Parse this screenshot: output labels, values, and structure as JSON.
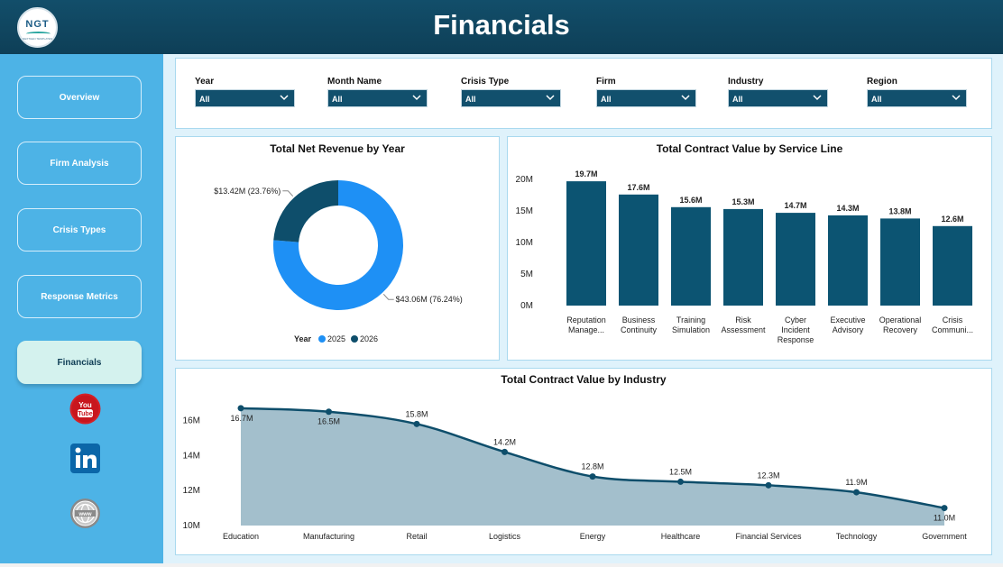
{
  "header": {
    "title": "Financials"
  },
  "logo": {
    "text": "NGT",
    "subtext": "NEXTGEN TEMPLATES"
  },
  "sidebar": {
    "items": [
      {
        "label": "Overview"
      },
      {
        "label": "Firm Analysis"
      },
      {
        "label": "Crisis Types"
      },
      {
        "label": "Response Metrics"
      },
      {
        "label": "Financials",
        "active": true
      }
    ],
    "social": [
      "youtube-icon",
      "linkedin-icon",
      "website-icon"
    ]
  },
  "filters": [
    {
      "label": "Year",
      "value": "All"
    },
    {
      "label": "Month Name",
      "value": "All"
    },
    {
      "label": "Crisis Type",
      "value": "All"
    },
    {
      "label": "Firm",
      "value": "All"
    },
    {
      "label": "Industry",
      "value": "All"
    },
    {
      "label": "Region",
      "value": "All"
    }
  ],
  "colors": {
    "header": "#0e3f57",
    "sidebar": "#4db3e6",
    "bar": "#0c5472",
    "donut_2025": "#1e90f5",
    "donut_2026": "#0e4e6b",
    "area_fill": "#a3bfcc",
    "area_line": "#0e4e6b"
  },
  "chart_data": [
    {
      "type": "pie",
      "title": "Total Net Revenue by Year",
      "legend_title": "Year",
      "legend_position": "bottom",
      "slices": [
        {
          "label": "2025",
          "value": 43.06,
          "display": "$43.06M (76.24%)"
        },
        {
          "label": "2026",
          "value": 13.42,
          "display": "$13.42M (23.76%)"
        }
      ]
    },
    {
      "type": "bar",
      "title": "Total Contract Value by Service Line",
      "categories": [
        [
          "Reputation",
          "Manage..."
        ],
        [
          "Business",
          "Continuity"
        ],
        [
          "Training",
          "Simulation"
        ],
        [
          "Risk",
          "Assessment"
        ],
        [
          "Cyber",
          "Incident",
          "Response"
        ],
        [
          "Executive",
          "Advisory"
        ],
        [
          "Operational",
          "Recovery"
        ],
        [
          "Crisis",
          "Communi..."
        ]
      ],
      "values": [
        19.7,
        17.6,
        15.6,
        15.3,
        14.7,
        14.3,
        13.8,
        12.6
      ],
      "data_labels": [
        "19.7M",
        "17.6M",
        "15.6M",
        "15.3M",
        "14.7M",
        "14.3M",
        "13.8M",
        "12.6M"
      ],
      "yticks": [
        {
          "value": 0,
          "label": "0M"
        },
        {
          "value": 5,
          "label": "5M"
        },
        {
          "value": 10,
          "label": "10M"
        },
        {
          "value": 15,
          "label": "15M"
        },
        {
          "value": 20,
          "label": "20M"
        }
      ],
      "ylim": [
        0,
        20
      ]
    },
    {
      "type": "area",
      "title": "Total Contract Value by Industry",
      "categories": [
        "Education",
        "Manufacturing",
        "Retail",
        "Logistics",
        "Energy",
        "Healthcare",
        "Financial Services",
        "Technology",
        "Government"
      ],
      "values": [
        16.7,
        16.5,
        15.8,
        14.2,
        12.8,
        12.5,
        12.3,
        11.9,
        11.0
      ],
      "data_labels": [
        "16.7M",
        "16.5M",
        "15.8M",
        "14.2M",
        "12.8M",
        "12.5M",
        "12.3M",
        "11.9M",
        "11.0M"
      ],
      "yticks": [
        {
          "value": 10,
          "label": "10M"
        },
        {
          "value": 12,
          "label": "12M"
        },
        {
          "value": 14,
          "label": "14M"
        },
        {
          "value": 16,
          "label": "16M"
        }
      ],
      "ylim": [
        10,
        17
      ]
    }
  ]
}
